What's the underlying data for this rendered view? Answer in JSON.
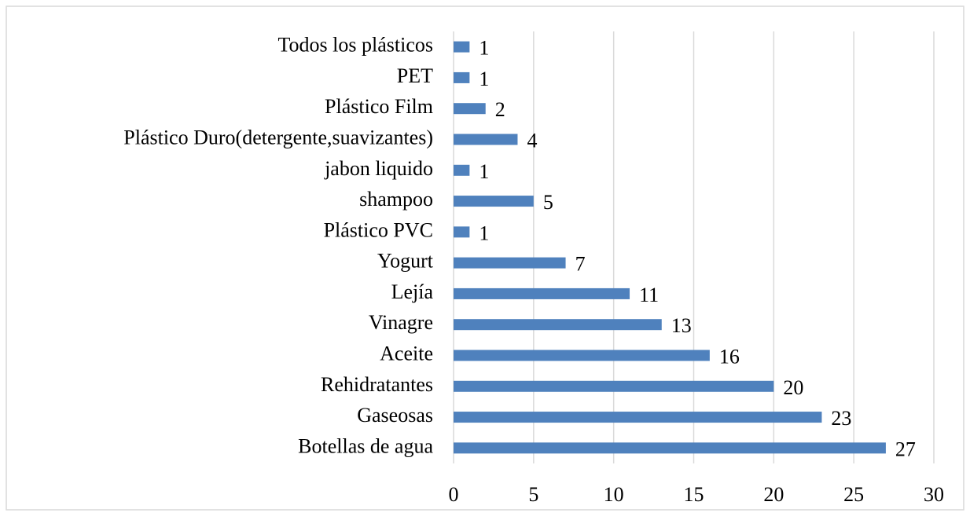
{
  "chart_data": {
    "type": "hbar",
    "categories": [
      "Todos los plásticos",
      "PET",
      "Plástico Film",
      "Plástico Duro(detergente,suavizantes)",
      "jabon liquido",
      "shampoo",
      "Plástico PVC",
      "Yogurt",
      "Lejía",
      "Vinagre",
      "Aceite",
      "Rehidratantes",
      "Gaseosas",
      "Botellas de agua"
    ],
    "values": [
      1,
      1,
      2,
      4,
      1,
      5,
      1,
      7,
      11,
      13,
      16,
      20,
      23,
      27
    ],
    "color": "#4f81bd",
    "xlim": [
      0,
      30
    ],
    "xticks": [
      0,
      5,
      10,
      15,
      20,
      25,
      30
    ],
    "grid": true
  }
}
